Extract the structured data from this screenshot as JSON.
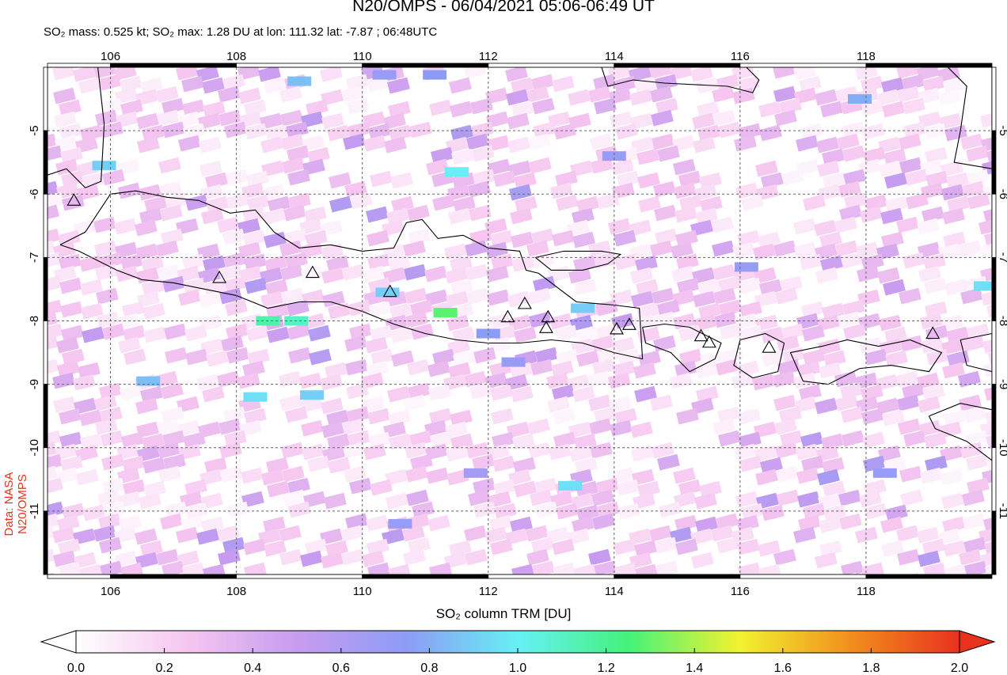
{
  "header": {
    "title": "N20/OMPS - 06/04/2021 05:06-06:49 UT",
    "subtitle": "SO₂ mass: 0.525 kt; SO₂ max: 1.28 DU at lon: 111.32 lat: -7.87 ; 06:48UTC"
  },
  "credit": "Data: NASA N20/OMPS",
  "colorbar": {
    "label": "SO₂ column TRM [DU]",
    "ticks": [
      "0.0",
      "0.2",
      "0.4",
      "0.6",
      "0.8",
      "1.0",
      "1.2",
      "1.4",
      "1.6",
      "1.8",
      "2.0"
    ],
    "min": 0.0,
    "max": 2.0,
    "stops": [
      "#ffffff",
      "#f6c6f0",
      "#c79cf0",
      "#8c9cf5",
      "#66f0f5",
      "#44f27a",
      "#f2f230",
      "#f2901e",
      "#e8321e"
    ]
  },
  "chart_data": {
    "type": "heatmap",
    "title": "N20/OMPS - 06/04/2021 05:06-06:49 UT",
    "xlim": [
      105.0,
      120.0
    ],
    "ylim": [
      -12.0,
      -4.0
    ],
    "x_ticks": [
      "106",
      "108",
      "110",
      "112",
      "114",
      "116",
      "118"
    ],
    "y_ticks": [
      "-5",
      "-6",
      "-7",
      "-8",
      "-9",
      "-10",
      "-11"
    ],
    "grid": true,
    "volcanoes": [
      {
        "lon": 107.73,
        "lat": -7.32
      },
      {
        "lon": 109.21,
        "lat": -7.24
      },
      {
        "lon": 110.44,
        "lat": -7.54
      },
      {
        "lon": 112.31,
        "lat": -7.94
      },
      {
        "lon": 112.58,
        "lat": -7.73
      },
      {
        "lon": 112.95,
        "lat": -7.94
      },
      {
        "lon": 112.92,
        "lat": -8.11
      },
      {
        "lon": 114.04,
        "lat": -8.13
      },
      {
        "lon": 114.24,
        "lat": -8.06
      },
      {
        "lon": 115.38,
        "lat": -8.24
      },
      {
        "lon": 115.51,
        "lat": -8.34
      },
      {
        "lon": 116.46,
        "lat": -8.42
      },
      {
        "lon": 119.06,
        "lat": -8.2
      },
      {
        "lon": 105.42,
        "lat": -6.1
      }
    ],
    "highlight_pixels": [
      {
        "lon": 111.32,
        "lat": -7.87,
        "value": 1.28
      },
      {
        "lon": 108.5,
        "lat": -8.0,
        "value": 1.15
      },
      {
        "lon": 108.95,
        "lat": -8.0,
        "value": 1.1
      },
      {
        "lon": 111.5,
        "lat": -5.65,
        "value": 1.0
      },
      {
        "lon": 113.3,
        "lat": -10.6,
        "value": 0.95
      },
      {
        "lon": 110.4,
        "lat": -7.55,
        "value": 0.9
      },
      {
        "lon": 108.3,
        "lat": -9.2,
        "value": 0.95
      },
      {
        "lon": 109.2,
        "lat": -9.17,
        "value": 0.9
      },
      {
        "lon": 105.9,
        "lat": -5.55,
        "value": 0.9
      },
      {
        "lon": 119.9,
        "lat": -7.45,
        "value": 0.95
      },
      {
        "lon": 113.5,
        "lat": -7.8,
        "value": 0.9
      },
      {
        "lon": 106.6,
        "lat": -8.95,
        "value": 0.85
      },
      {
        "lon": 111.15,
        "lat": -4.12,
        "value": 0.75
      },
      {
        "lon": 110.35,
        "lat": -4.12,
        "value": 0.7
      },
      {
        "lon": 109.0,
        "lat": -4.22,
        "value": 0.85
      },
      {
        "lon": 117.9,
        "lat": -4.5,
        "value": 0.8
      },
      {
        "lon": 112.0,
        "lat": -8.2,
        "value": 0.75
      },
      {
        "lon": 112.4,
        "lat": -8.65,
        "value": 0.7
      },
      {
        "lon": 114.0,
        "lat": -5.4,
        "value": 0.7
      },
      {
        "lon": 116.1,
        "lat": -7.15,
        "value": 0.7
      },
      {
        "lon": 111.8,
        "lat": -10.4,
        "value": 0.65
      },
      {
        "lon": 110.6,
        "lat": -11.2,
        "value": 0.7
      },
      {
        "lon": 118.3,
        "lat": -10.4,
        "value": 0.7
      }
    ]
  }
}
